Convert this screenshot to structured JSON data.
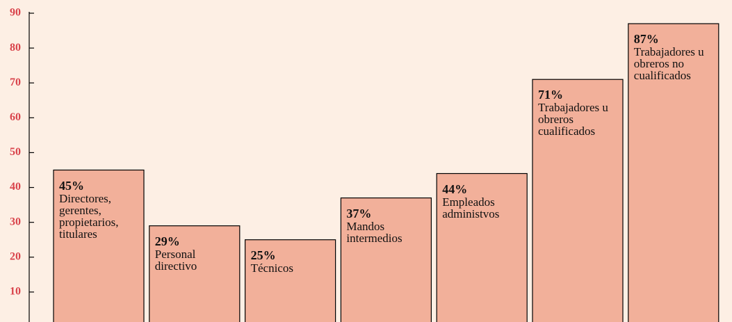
{
  "chart_data": {
    "type": "bar",
    "categories": [
      "Directores, gerentes, propietarios, titulares",
      "Personal directivo",
      "Técnicos",
      "Mandos intermedios",
      "Empleados administvos",
      "Trabajadores u obreros cualificados",
      "Trabajadores u obreros no cualificados"
    ],
    "values": [
      45,
      29,
      25,
      37,
      44,
      71,
      87
    ],
    "value_labels": [
      "45%",
      "29%",
      "25%",
      "37%",
      "44%",
      "71%",
      "87%"
    ],
    "color": "#f2b09a",
    "ylim": [
      0,
      90
    ],
    "yticks": [
      10,
      20,
      30,
      40,
      50,
      60,
      70,
      80,
      90
    ]
  }
}
